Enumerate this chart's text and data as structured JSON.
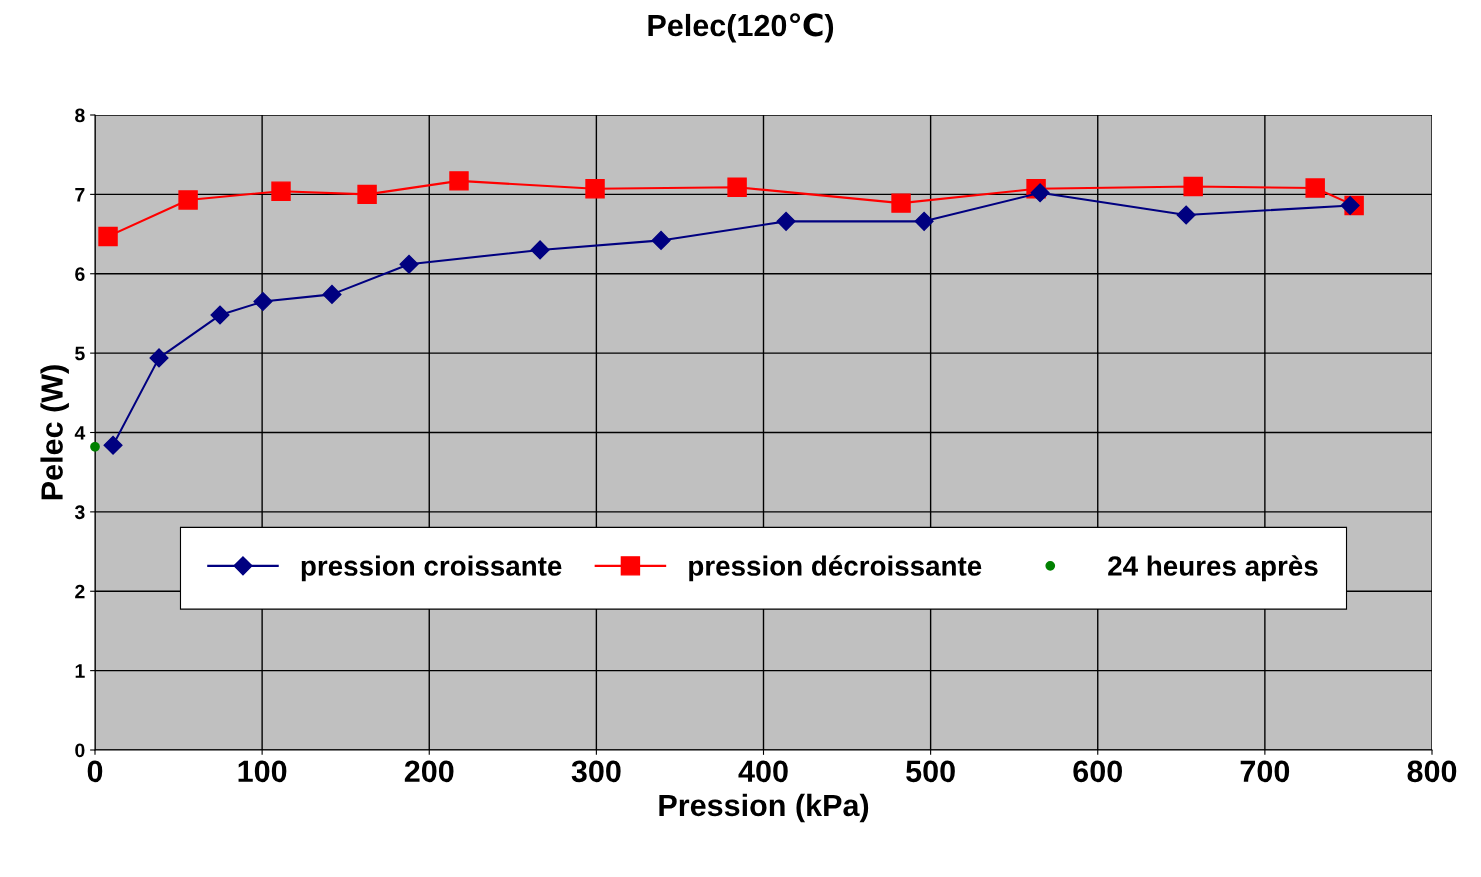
{
  "chart_data": {
    "type": "line",
    "title": "Pelec(120℃)",
    "xlabel": "Pression (kPa)",
    "ylabel": "Pelec (W)",
    "xlim": [
      0,
      800
    ],
    "xticks": [
      0,
      100,
      200,
      300,
      400,
      500,
      600,
      700,
      800
    ],
    "ylim": [
      0,
      8
    ],
    "yticks": [
      0,
      1,
      2,
      3,
      4,
      5,
      6,
      7,
      8
    ],
    "grid": true,
    "legend": "bottom",
    "series": [
      {
        "name": "pression croissante",
        "color": "#000080",
        "marker": "diamond",
        "x": [
          10.8,
          38.3,
          74.8,
          100.5,
          141.8,
          187.9,
          266.3,
          338.7,
          413.5,
          496.1,
          565.5,
          652.9,
          751
        ],
        "values": [
          3.84,
          4.94,
          5.48,
          5.65,
          5.74,
          6.12,
          6.3,
          6.42,
          6.66,
          6.66,
          7.02,
          6.74,
          6.86
        ]
      },
      {
        "name": "pression décroissante",
        "color": "#ff0000",
        "marker": "square",
        "x": [
          7.8,
          55.7,
          111.3,
          162.8,
          217.8,
          299.2,
          384.2,
          482.3,
          563.1,
          657.1,
          730.1,
          753.4
        ],
        "values": [
          6.47,
          6.93,
          7.04,
          7.0,
          7.17,
          7.07,
          7.09,
          6.89,
          7.07,
          7.1,
          7.08,
          6.86
        ]
      },
      {
        "name": "24 heures après",
        "color": "#008000",
        "marker": "circle",
        "type": "scatter",
        "x": [
          0
        ],
        "values": [
          3.82
        ]
      }
    ]
  }
}
